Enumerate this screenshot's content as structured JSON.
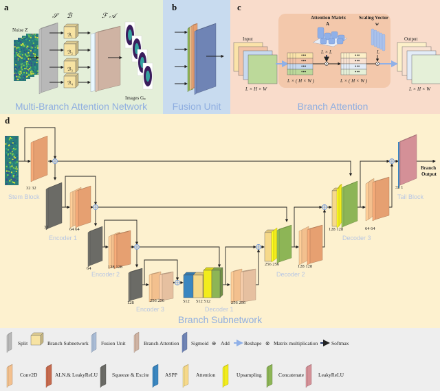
{
  "panel_a": {
    "letter": "a",
    "noise_label": "Noise Z",
    "split_symbol": "𝒮",
    "branch_symbol": "ℬ",
    "fusion_attention_symbols": "ℱ  𝒜",
    "branches": [
      "ℬ₁",
      "ℬ₂",
      "ℬ₃",
      "ℬ₄"
    ],
    "images_label": "Images Gₚ",
    "title": "Multi-Branch Attention Network"
  },
  "panel_b": {
    "letter": "b",
    "title": "Fusion Unit"
  },
  "panel_c": {
    "letter": "c",
    "input_label": "Input",
    "output_label": "Output",
    "attention_matrix_label": "Attention Matrix",
    "attention_matrix_symbol": "A",
    "scaling_vector_label": "Scaling Vector",
    "scaling_vector_symbol": "w",
    "input_dims": "L × H × W",
    "output_dims": "L × H × W",
    "reshaped_dims_1": "L × ( H × W )",
    "reshaped_dims_2": "L × ( H × W )",
    "lxl_label": "L × L",
    "l_label": "L",
    "dots": "•••",
    "title": "Branch Attention"
  },
  "panel_d": {
    "letter": "d",
    "title": "Branch Subnetwork",
    "blocks": {
      "stem": "Stem Block",
      "encoder1": "Encoder 1",
      "encoder2": "Encoder 2",
      "encoder3": "Encoder 3",
      "decoder1": "Decoder 1",
      "decoder2": "Decoder 2",
      "decoder3": "Decoder 3",
      "tail": "Tail Block"
    },
    "channels": {
      "stem": "32 32",
      "enc1_se": "32",
      "enc1_conv": "64 64",
      "enc2_se": "64",
      "enc2_conv": "128 128",
      "enc3_se": "128",
      "enc3_conv": "256 256",
      "dec1_aspp": "512",
      "dec1_cat": "512 512",
      "dec1_conv": "256 256",
      "dec2_cat": "256 256",
      "dec2_conv": "128  128",
      "dec3_cat": "128 128",
      "dec3_conv": "64 64",
      "tail": "32 1"
    },
    "output_label_1": "Branch",
    "output_label_2": "Output"
  },
  "legend": {
    "row1": [
      {
        "label": "Split",
        "color": "#b8b8b8"
      },
      {
        "label": "Branch Subnetwork",
        "color": "#f7e3a3"
      },
      {
        "label": "Fusion Unit",
        "color": "#a9bcd6"
      },
      {
        "label": "Branch Attention",
        "color": "#cfb3a3"
      },
      {
        "label": "Sigmoid",
        "color": "#6f84b5"
      },
      {
        "label": "Add",
        "symbol": "⊕"
      },
      {
        "label": "Reshape",
        "color": "#8fb0e8"
      },
      {
        "label": "Matrix multiplication",
        "symbol": "⊗"
      },
      {
        "label": "Softmax",
        "color": "#1c2f63"
      }
    ],
    "row2": [
      {
        "label": "Conv2D",
        "color": "#f3c08e"
      },
      {
        "label": "ALN.& LeakyReLU",
        "color": "#c56a4e"
      },
      {
        "label": "Squeeze & Excite",
        "color": "#6b6b66"
      },
      {
        "label": "ASPP",
        "color": "#3a86c0"
      },
      {
        "label": "Attention",
        "color": "#f6d98a"
      },
      {
        "label": "Upsampling",
        "color": "#f2ec1c"
      },
      {
        "label": "Concatenate",
        "color": "#8db556"
      },
      {
        "label": "LeakyReLU",
        "color": "#d49097"
      }
    ]
  },
  "colors": {
    "panel_a_bg": "#e4efd9",
    "panel_b_bg": "#c8dbef",
    "panel_c_bg": "#f9dccb",
    "panel_d_bg": "#fdf1cf",
    "legend_bg": "#eeeeee",
    "title_blue": "#8faee0"
  }
}
